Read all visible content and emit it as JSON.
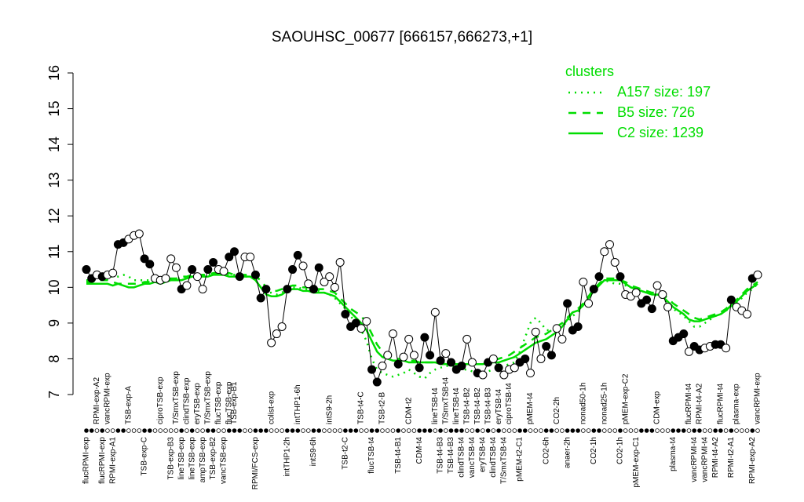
{
  "chart_data": {
    "type": "line",
    "title": "SAOUHSC_00677 [666157,666273,+1]",
    "ylim": [
      7,
      16
    ],
    "yticks": [
      7,
      8,
      9,
      10,
      11,
      12,
      13,
      14,
      15,
      16
    ],
    "legend_title": "clusters",
    "legend_position": "top-right",
    "categories": [
      "flucRPMI-exp",
      null,
      null,
      "flucRPMI-exp",
      null,
      "RPMI-exp-A1",
      null,
      null,
      null,
      null,
      null,
      "TSB-exp-C",
      null,
      null,
      null,
      null,
      "TSB-exp-B3",
      null,
      "lineTSB-exp",
      null,
      "lineTSB-exp",
      null,
      "ampTSB-exp",
      null,
      "TSB-exp-B2",
      null,
      "vancTSB-exp",
      null,
      null,
      null,
      null,
      null,
      "RPMI/FCS-exp",
      null,
      null,
      null,
      null,
      null,
      "intTHP1-2h",
      null,
      null,
      null,
      null,
      "intS9-6h",
      null,
      null,
      null,
      null,
      null,
      "TSB-t2-C",
      null,
      null,
      null,
      null,
      "flucTSB-t4",
      null,
      null,
      null,
      null,
      "TSB-t4-B1",
      null,
      null,
      null,
      "CDM-t4",
      null,
      null,
      null,
      "TSB-t4-B3",
      null,
      "TSB-t4-B3",
      null,
      "clindTSB-t4",
      null,
      "vancTSB-t4",
      null,
      "eryTSB-t4",
      null,
      "clindTSB-t4",
      null,
      "T/SmxTSB-t4",
      null,
      null,
      "pMEM-t2-C1",
      null,
      null,
      null,
      null,
      "CO2-6h",
      null,
      null,
      null,
      "anaer-2h",
      null,
      null,
      null,
      null,
      "CO2-1h",
      null,
      null,
      null,
      null,
      "CO2-1h",
      null,
      null,
      "pMEM-exp-C1",
      null,
      null,
      null,
      null,
      null,
      null,
      "plasma-t4",
      null,
      null,
      null,
      "vancRPMI-t4",
      null,
      "vancRPMI-t4",
      null,
      "RPMI-t4-A2",
      null,
      null,
      "RPMI-t2-A1",
      null,
      null,
      null,
      "RPMI-exp-A2",
      null
    ],
    "top_categories": [
      null,
      null,
      "RPMI-exp-A2",
      null,
      "vancRPMI-exp",
      null,
      null,
      null,
      "TSB-exp-A",
      null,
      null,
      null,
      null,
      null,
      "ciproTSB-exp",
      null,
      null,
      "T/SmxTSB-exp",
      null,
      "clindTSB-exp",
      null,
      "eryTSB-exp",
      null,
      "T/SmxTSB-exp",
      null,
      "flucTSB-exp",
      null,
      "flucTSB-exp",
      "TSB-exp-B1",
      null,
      null,
      null,
      null,
      null,
      null,
      "colist-exp",
      null,
      null,
      null,
      null,
      "intTHP1-6h",
      null,
      null,
      null,
      null,
      null,
      "intS9-2h",
      null,
      null,
      null,
      null,
      null,
      "TSB-t4-C",
      null,
      null,
      null,
      "TSB-t2-B",
      null,
      null,
      null,
      null,
      "CDM-t2",
      null,
      null,
      null,
      null,
      "lineTSB-t4",
      null,
      "T/SmxTSB-t4",
      null,
      "lineTSB-t4",
      null,
      "TSB-t4-B2",
      null,
      "TSB-t4-B2",
      null,
      "TSB-t4-B3",
      null,
      "eryTSB-t4",
      null,
      "ciproTSB-t4",
      null,
      null,
      null,
      "pMEM-t4",
      null,
      null,
      null,
      null,
      "CO2-2h",
      null,
      null,
      null,
      null,
      "nonad50-1h",
      null,
      null,
      null,
      "nonad25-1h",
      null,
      null,
      null,
      "pMEM-exp-C2",
      null,
      null,
      null,
      null,
      null,
      "CDM-exp",
      null,
      null,
      null,
      null,
      null,
      "flucRPMI-t4",
      null,
      "RPMI-t4-A2",
      null,
      null,
      null,
      "flucRPMI-t4",
      null,
      null,
      "plasma-exp",
      null,
      null,
      null,
      "vancRPMI-exp"
    ],
    "values": [
      10.5,
      10.25,
      10.35,
      10.3,
      10.35,
      10.4,
      11.2,
      11.25,
      11.35,
      11.45,
      11.5,
      10.8,
      10.65,
      10.25,
      10.2,
      10.25,
      10.8,
      10.55,
      9.95,
      10.05,
      10.5,
      10.3,
      9.95,
      10.5,
      10.7,
      10.5,
      10.45,
      10.85,
      11.0,
      10.3,
      10.85,
      10.85,
      10.35,
      9.7,
      9.95,
      8.45,
      8.7,
      8.9,
      9.95,
      10.5,
      10.9,
      10.6,
      10.1,
      9.95,
      10.55,
      10.15,
      10.3,
      10.0,
      10.7,
      9.25,
      8.9,
      9.0,
      8.85,
      9.05,
      7.7,
      7.35,
      7.8,
      8.1,
      8.7,
      7.85,
      8.05,
      8.55,
      8.1,
      7.75,
      8.6,
      8.1,
      9.3,
      7.95,
      8.15,
      7.9,
      7.7,
      7.8,
      8.55,
      7.9,
      7.6,
      7.55,
      7.9,
      8.0,
      7.75,
      7.55,
      7.7,
      7.75,
      7.9,
      8.0,
      7.6,
      8.75,
      8.0,
      8.35,
      8.1,
      8.85,
      8.55,
      9.55,
      8.8,
      8.9,
      10.15,
      9.55,
      9.95,
      10.3,
      11.0,
      11.2,
      10.7,
      10.3,
      9.8,
      9.75,
      9.85,
      9.55,
      9.65,
      9.4,
      10.05,
      9.8,
      9.45,
      8.5,
      8.6,
      8.7,
      8.2,
      8.35,
      8.25,
      8.3,
      8.35,
      8.4,
      8.4,
      8.3,
      9.65,
      9.45,
      9.35,
      9.25,
      10.25,
      10.35
    ],
    "line_color": "#000000",
    "point_fill": [
      "black",
      "black",
      "white",
      "black",
      "white",
      "white",
      "black",
      "black",
      "white",
      "white",
      "white",
      "black",
      "black",
      "white",
      "white",
      "white",
      "white",
      "white",
      "black",
      "white",
      "black",
      "white",
      "white",
      "black",
      "black",
      "white",
      "white",
      "black",
      "black",
      "black",
      "white",
      "white",
      "black",
      "black",
      "black",
      "white",
      "white",
      "white",
      "black",
      "black",
      "black",
      "white",
      "white",
      "black",
      "black",
      "white",
      "white",
      "white",
      "white",
      "black",
      "black",
      "black",
      "white",
      "white",
      "black",
      "black",
      "white",
      "white",
      "white",
      "black",
      "white",
      "white",
      "white",
      "black",
      "black",
      "black",
      "white",
      "black",
      "white",
      "black",
      "black",
      "black",
      "white",
      "white",
      "black",
      "white",
      "black",
      "white",
      "black",
      "white",
      "white",
      "white",
      "black",
      "black",
      "white",
      "white",
      "white",
      "black",
      "black",
      "white",
      "white",
      "black",
      "black",
      "black",
      "white",
      "white",
      "black",
      "black",
      "white",
      "white",
      "white",
      "black",
      "white",
      "white",
      "white",
      "black",
      "black",
      "black",
      "white",
      "white",
      "white",
      "black",
      "black",
      "black",
      "white",
      "black",
      "black",
      "white",
      "white",
      "black",
      "black",
      "white",
      "black",
      "white",
      "white",
      "white",
      "black",
      "white"
    ],
    "series": [
      {
        "name": "A157 size: 197",
        "color": "#00dd00",
        "style": "dotted",
        "values": [
          10.2,
          10.2,
          10.25,
          10.3,
          10.3,
          10.3,
          10.3,
          10.35,
          10.3,
          10.2,
          10.2,
          10.2,
          10.2,
          10.2,
          10.2,
          10.2,
          10.2,
          10.25,
          10.25,
          10.3,
          10.3,
          10.3,
          10.35,
          10.35,
          10.4,
          10.4,
          10.4,
          10.35,
          10.35,
          10.3,
          10.3,
          10.3,
          10.2,
          10.0,
          9.85,
          9.85,
          9.8,
          9.85,
          9.95,
          10.0,
          10.0,
          9.95,
          9.95,
          9.9,
          9.9,
          9.85,
          9.8,
          9.7,
          9.55,
          9.4,
          9.2,
          9.0,
          8.8,
          8.5,
          8.0,
          7.7,
          7.6,
          7.55,
          7.5,
          7.55,
          7.6,
          7.7,
          7.6,
          7.5,
          7.45,
          7.6,
          7.7,
          7.75,
          7.8,
          7.8,
          7.75,
          7.7,
          7.7,
          7.65,
          7.6,
          7.6,
          7.65,
          7.7,
          7.75,
          7.8,
          7.85,
          7.9,
          8.2,
          8.6,
          9.0,
          9.15,
          9.0,
          8.8,
          8.8,
          8.85,
          8.9,
          9.05,
          9.2,
          9.3,
          9.5,
          9.7,
          9.95,
          10.1,
          10.2,
          10.15,
          10.1,
          10.1,
          10.05,
          10.0,
          9.95,
          9.9,
          9.85,
          9.8,
          9.75,
          9.7,
          9.55,
          9.4,
          9.3,
          9.2,
          9.05,
          8.9,
          8.9,
          9.0,
          9.1,
          9.2,
          9.25,
          9.35,
          9.45,
          9.55,
          9.7,
          9.85,
          9.95,
          10.1
        ]
      },
      {
        "name": "B5 size: 726",
        "color": "#00dd00",
        "style": "dashed",
        "values": [
          10.15,
          10.15,
          10.2,
          10.2,
          10.2,
          10.15,
          10.1,
          10.1,
          10.1,
          10.1,
          10.1,
          10.15,
          10.15,
          10.2,
          10.2,
          10.2,
          10.25,
          10.25,
          10.3,
          10.3,
          10.35,
          10.35,
          10.35,
          10.35,
          10.4,
          10.4,
          10.4,
          10.4,
          10.35,
          10.35,
          10.35,
          10.35,
          10.3,
          10.2,
          10.0,
          9.9,
          9.9,
          9.95,
          10.0,
          10.05,
          10.05,
          10.0,
          10.0,
          9.95,
          9.95,
          9.95,
          9.9,
          9.85,
          9.7,
          9.55,
          9.4,
          9.3,
          9.2,
          9.0,
          8.7,
          8.4,
          8.2,
          8.1,
          8.05,
          8.0,
          8.0,
          7.95,
          7.95,
          7.9,
          7.9,
          7.9,
          7.9,
          7.9,
          7.85,
          7.85,
          7.85,
          7.85,
          7.85,
          7.85,
          7.85,
          7.85,
          7.9,
          7.95,
          8.0,
          8.05,
          8.1,
          8.2,
          8.3,
          8.4,
          8.5,
          8.6,
          8.65,
          8.7,
          8.8,
          8.9,
          9.0,
          9.15,
          9.3,
          9.4,
          9.55,
          9.75,
          9.95,
          10.1,
          10.25,
          10.25,
          10.25,
          10.2,
          10.15,
          10.05,
          10.0,
          9.95,
          9.9,
          9.85,
          9.85,
          9.8,
          9.7,
          9.55,
          9.45,
          9.35,
          9.25,
          9.15,
          9.1,
          9.15,
          9.2,
          9.25,
          9.3,
          9.4,
          9.55,
          9.65,
          9.8,
          9.95,
          10.05,
          10.15
        ]
      },
      {
        "name": "C2 size: 1239",
        "color": "#00dd00",
        "style": "solid",
        "values": [
          10.1,
          10.1,
          10.1,
          10.1,
          10.1,
          10.05,
          10.1,
          10.05,
          10.0,
          10.0,
          10.05,
          10.1,
          10.1,
          10.15,
          10.1,
          10.15,
          10.2,
          10.2,
          10.2,
          10.25,
          10.3,
          10.3,
          10.3,
          10.3,
          10.35,
          10.35,
          10.35,
          10.3,
          10.3,
          10.3,
          10.3,
          10.3,
          10.2,
          10.0,
          9.8,
          9.75,
          9.75,
          9.8,
          9.9,
          9.95,
          9.95,
          9.9,
          9.9,
          9.85,
          9.85,
          9.85,
          9.8,
          9.75,
          9.6,
          9.45,
          9.3,
          9.15,
          9.0,
          8.8,
          8.5,
          8.2,
          8.05,
          8.0,
          7.95,
          7.95,
          7.95,
          7.9,
          7.9,
          7.9,
          7.9,
          7.9,
          7.9,
          7.85,
          7.85,
          7.85,
          7.85,
          7.85,
          7.85,
          7.85,
          7.85,
          7.85,
          7.9,
          7.9,
          7.9,
          7.95,
          8.0,
          8.05,
          8.15,
          8.25,
          8.35,
          8.45,
          8.5,
          8.55,
          8.65,
          8.75,
          8.9,
          9.1,
          9.3,
          9.35,
          9.5,
          9.7,
          9.9,
          10.05,
          10.2,
          10.2,
          10.2,
          10.2,
          10.1,
          10.0,
          9.95,
          9.9,
          9.85,
          9.8,
          9.8,
          9.75,
          9.6,
          9.45,
          9.35,
          9.25,
          9.1,
          9.05,
          9.05,
          9.1,
          9.15,
          9.2,
          9.25,
          9.35,
          9.5,
          9.6,
          9.75,
          9.9,
          10.0,
          10.1
        ]
      }
    ]
  }
}
